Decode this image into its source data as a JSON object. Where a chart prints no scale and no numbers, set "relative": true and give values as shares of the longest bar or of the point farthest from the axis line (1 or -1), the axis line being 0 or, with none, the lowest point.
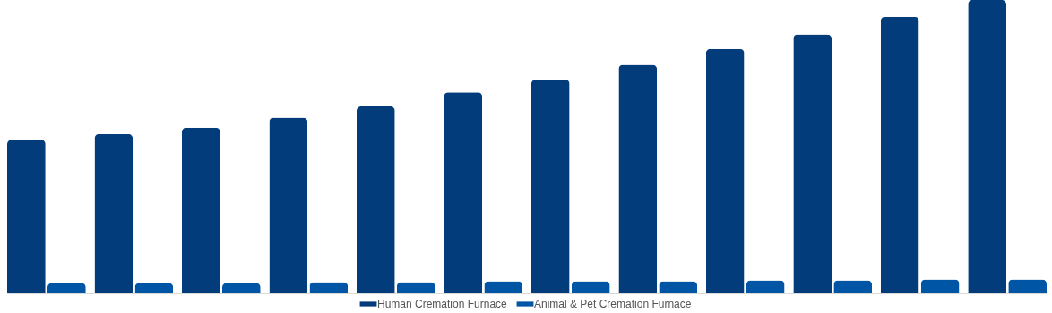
{
  "chart_data": {
    "type": "bar",
    "relative": true,
    "legend": "bottom",
    "categories": [
      null,
      null,
      null,
      null,
      null,
      null,
      null,
      null,
      null,
      null,
      null,
      null
    ],
    "series": [
      {
        "name": "Human Cremation Furnace",
        "color": "#023c7a",
        "values": [
          0.524,
          0.543,
          0.565,
          0.599,
          0.637,
          0.685,
          0.729,
          0.779,
          0.833,
          0.883,
          0.943,
          1
        ]
      },
      {
        "name": "Animal & Pet Cremation Furnace",
        "color": "#0055a5",
        "values": [
          0.035,
          0.035,
          0.035,
          0.038,
          0.038,
          0.041,
          0.041,
          0.041,
          0.044,
          0.044,
          0.047,
          0.047
        ]
      }
    ]
  }
}
